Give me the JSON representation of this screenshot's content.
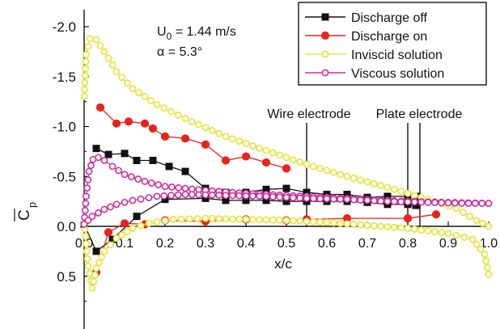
{
  "chart_data": {
    "type": "line",
    "title": "",
    "xlabel": "x/c",
    "ylabel": "C",
    "ylabel_subscript": "p",
    "xlim": [
      0.0,
      1.0
    ],
    "ylim": [
      -2.0,
      1.0
    ],
    "y_reversed": true,
    "grid": false,
    "legend_position": "top-right",
    "x_ticks": [
      0.0,
      0.1,
      0.2,
      0.3,
      0.4,
      0.5,
      0.6,
      0.7,
      0.8,
      0.9,
      1.0
    ],
    "x_tick_labels": [
      "0.0",
      "0.1",
      "0.2",
      "0.3",
      "0.4",
      "0.5",
      "0.6",
      "0.7",
      "0.8",
      "0.9",
      "1.0"
    ],
    "y_ticks": [
      -2.0,
      -1.5,
      -1.0,
      -0.5,
      0.0,
      0.5
    ],
    "y_tick_labels": [
      "-2.0",
      "-1.5",
      "-1.0",
      "-0.5",
      "0.0",
      "0.5"
    ],
    "conditions": [
      "U",
      "0",
      " = 1.44 m/s",
      "α = 5.3°"
    ],
    "annotations": [
      {
        "label": "Wire electrode",
        "x": 0.55
      },
      {
        "label": "Plate electrode",
        "x": 0.8,
        "x2": 0.83
      }
    ],
    "series": [
      {
        "name": "Discharge off",
        "color": "#111111",
        "marker": "square-filled",
        "upper": [
          [
            0.03,
            -0.78
          ],
          [
            0.06,
            -0.72
          ],
          [
            0.1,
            -0.73
          ],
          [
            0.13,
            -0.66
          ],
          [
            0.17,
            -0.66
          ],
          [
            0.21,
            -0.6
          ],
          [
            0.25,
            -0.55
          ],
          [
            0.3,
            -0.38
          ],
          [
            0.35,
            -0.34
          ],
          [
            0.4,
            -0.34
          ],
          [
            0.45,
            -0.37
          ],
          [
            0.5,
            -0.38
          ],
          [
            0.55,
            -0.34
          ],
          [
            0.6,
            -0.32
          ],
          [
            0.65,
            -0.32
          ],
          [
            0.7,
            -0.29
          ],
          [
            0.75,
            -0.3
          ],
          [
            0.8,
            -0.3
          ],
          [
            0.82,
            -0.3
          ]
        ],
        "lower": [
          [
            0.0,
            -0.02
          ],
          [
            0.03,
            0.25
          ],
          [
            0.07,
            0.13
          ],
          [
            0.13,
            -0.1
          ],
          [
            0.2,
            -0.27
          ],
          [
            0.3,
            -0.28
          ],
          [
            0.35,
            -0.26
          ],
          [
            0.4,
            -0.26
          ],
          [
            0.45,
            -0.26
          ],
          [
            0.5,
            -0.25
          ],
          [
            0.55,
            -0.25
          ],
          [
            0.6,
            -0.25
          ],
          [
            0.65,
            -0.25
          ],
          [
            0.7,
            -0.24
          ],
          [
            0.75,
            -0.22
          ],
          [
            0.8,
            -0.22
          ],
          [
            0.82,
            -0.21
          ]
        ]
      },
      {
        "name": "Discharge on",
        "color": "#e8221c",
        "marker": "circle-filled",
        "upper": [
          [
            0.04,
            -1.19
          ],
          [
            0.08,
            -1.03
          ],
          [
            0.11,
            -1.05
          ],
          [
            0.15,
            -1.03
          ],
          [
            0.17,
            -0.98
          ],
          [
            0.2,
            -0.9
          ],
          [
            0.25,
            -0.88
          ],
          [
            0.3,
            -0.82
          ],
          [
            0.35,
            -0.66
          ],
          [
            0.4,
            -0.7
          ],
          [
            0.45,
            -0.64
          ],
          [
            0.5,
            -0.58
          ]
        ],
        "lower": [
          [
            0.03,
            0.46
          ],
          [
            0.06,
            0.06
          ],
          [
            0.1,
            -0.03
          ],
          [
            0.15,
            -0.02
          ],
          [
            0.2,
            -0.06
          ],
          [
            0.3,
            -0.05
          ],
          [
            0.4,
            -0.07
          ],
          [
            0.5,
            -0.06
          ],
          [
            0.55,
            -0.07
          ],
          [
            0.65,
            -0.08
          ],
          [
            0.8,
            -0.08
          ],
          [
            0.87,
            -0.12
          ]
        ]
      },
      {
        "name": "Inviscid solution",
        "color": "#e8e23a",
        "marker": "circle-open",
        "upper": [
          [
            0.0,
            -1.3
          ],
          [
            0.005,
            -1.72
          ],
          [
            0.015,
            -1.88
          ],
          [
            0.03,
            -1.87
          ],
          [
            0.05,
            -1.75
          ],
          [
            0.08,
            -1.55
          ],
          [
            0.12,
            -1.38
          ],
          [
            0.18,
            -1.22
          ],
          [
            0.25,
            -1.08
          ],
          [
            0.35,
            -0.9
          ],
          [
            0.45,
            -0.76
          ],
          [
            0.55,
            -0.62
          ],
          [
            0.65,
            -0.5
          ],
          [
            0.75,
            -0.39
          ],
          [
            0.85,
            -0.27
          ],
          [
            0.92,
            -0.18
          ],
          [
            0.97,
            -0.06
          ],
          [
            1.0,
            0.0
          ]
        ],
        "lower": [
          [
            0.0,
            -0.05
          ],
          [
            0.01,
            0.4
          ],
          [
            0.02,
            0.62
          ],
          [
            0.03,
            0.42
          ],
          [
            0.05,
            0.25
          ],
          [
            0.08,
            0.12
          ],
          [
            0.12,
            0.02
          ],
          [
            0.16,
            -0.03
          ],
          [
            0.22,
            -0.07
          ],
          [
            0.3,
            -0.08
          ],
          [
            0.4,
            -0.07
          ],
          [
            0.5,
            -0.06
          ],
          [
            0.6,
            -0.04
          ],
          [
            0.7,
            -0.01
          ],
          [
            0.8,
            0.02
          ],
          [
            0.9,
            0.07
          ],
          [
            0.96,
            0.13
          ],
          [
            0.99,
            0.28
          ],
          [
            1.0,
            0.48
          ]
        ]
      },
      {
        "name": "Viscous solution",
        "color": "#cc2fa0",
        "marker": "circle-open",
        "upper": [
          [
            0.0,
            -0.02
          ],
          [
            0.005,
            -0.3
          ],
          [
            0.012,
            -0.55
          ],
          [
            0.022,
            -0.67
          ],
          [
            0.035,
            -0.69
          ],
          [
            0.05,
            -0.66
          ],
          [
            0.07,
            -0.6
          ],
          [
            0.1,
            -0.52
          ],
          [
            0.15,
            -0.45
          ],
          [
            0.2,
            -0.4
          ],
          [
            0.3,
            -0.36
          ],
          [
            0.4,
            -0.33
          ],
          [
            0.5,
            -0.31
          ],
          [
            0.6,
            -0.29
          ],
          [
            0.7,
            -0.27
          ],
          [
            0.8,
            -0.25
          ],
          [
            0.9,
            -0.24
          ],
          [
            1.0,
            -0.23
          ]
        ],
        "lower": [
          [
            0.0,
            -0.02
          ],
          [
            0.02,
            -0.1
          ],
          [
            0.05,
            -0.17
          ],
          [
            0.08,
            -0.22
          ],
          [
            0.12,
            -0.26
          ],
          [
            0.18,
            -0.3
          ],
          [
            0.25,
            -0.32
          ],
          [
            0.35,
            -0.31
          ],
          [
            0.45,
            -0.3
          ],
          [
            0.55,
            -0.28
          ],
          [
            0.65,
            -0.27
          ],
          [
            0.75,
            -0.25
          ],
          [
            0.85,
            -0.24
          ],
          [
            0.95,
            -0.23
          ],
          [
            1.0,
            -0.23
          ]
        ]
      }
    ]
  }
}
